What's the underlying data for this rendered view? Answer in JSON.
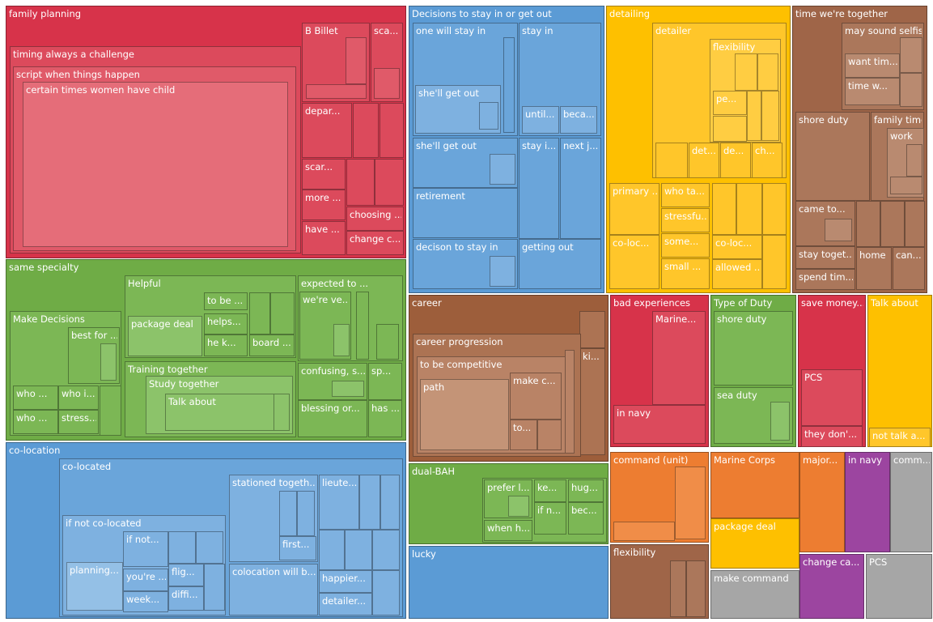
{
  "nodes": [
    {
      "label": "family planning",
      "children": [
        {
          "label": "timing always a challenge",
          "children": [
            {
              "label": "script when things happen",
              "children": [
                {
                  "label": "certain times women have child"
                }
              ]
            }
          ]
        },
        {
          "label": "B Billet"
        },
        {
          "label": "sca..."
        },
        {
          "label": "depar..."
        },
        {
          "label": "scar..."
        },
        {
          "label": "more ..."
        },
        {
          "label": "have ..."
        },
        {
          "label": "choosing ..."
        },
        {
          "label": "change c..."
        }
      ]
    },
    {
      "label": "Decisions to stay in or get out",
      "children": [
        {
          "label": "one will stay in",
          "children": [
            {
              "label": "she'll get out"
            }
          ]
        },
        {
          "label": "stay in",
          "children": [
            {
              "label": "until..."
            },
            {
              "label": "beca..."
            }
          ]
        },
        {
          "label": "she'll get out"
        },
        {
          "label": "stay i..."
        },
        {
          "label": "next j..."
        },
        {
          "label": "retirement"
        },
        {
          "label": "decison to stay in"
        },
        {
          "label": "getting out"
        }
      ]
    },
    {
      "label": "detailing",
      "children": [
        {
          "label": "detailer",
          "children": [
            {
              "label": "flexibility",
              "children": [
                {
                  "label": "pe..."
                }
              ]
            },
            {
              "label": "det..."
            },
            {
              "label": "de..."
            },
            {
              "label": "ch..."
            }
          ]
        },
        {
          "label": "primary ..."
        },
        {
          "label": "who ta..."
        },
        {
          "label": "stressfu..."
        },
        {
          "label": "some..."
        },
        {
          "label": "small ..."
        },
        {
          "label": "co-loc..."
        },
        {
          "label": "co-loc..."
        },
        {
          "label": "allowed ..."
        }
      ]
    },
    {
      "label": "time we're together",
      "children": [
        {
          "label": "may sound selfish",
          "children": [
            {
              "label": "want tim..."
            },
            {
              "label": "time w..."
            }
          ]
        },
        {
          "label": "shore duty"
        },
        {
          "label": "family time",
          "children": [
            {
              "label": "work"
            }
          ]
        },
        {
          "label": "came to..."
        },
        {
          "label": "stay toget..."
        },
        {
          "label": "spend tim..."
        },
        {
          "label": "home"
        },
        {
          "label": "can..."
        }
      ]
    },
    {
      "label": "same specialty",
      "children": [
        {
          "label": "Helpful",
          "children": [
            {
              "label": "package deal"
            },
            {
              "label": "to be ..."
            },
            {
              "label": "helps..."
            },
            {
              "label": "he k..."
            },
            {
              "label": "board ..."
            }
          ]
        },
        {
          "label": "Make Decisions",
          "children": [
            {
              "label": "best for ..."
            },
            {
              "label": "who ..."
            },
            {
              "label": "who i..."
            },
            {
              "label": "who ..."
            },
            {
              "label": "stress..."
            }
          ]
        },
        {
          "label": "expected to ...",
          "children": [
            {
              "label": "we're ve..."
            }
          ]
        },
        {
          "label": "confusing, s..."
        },
        {
          "label": "sp..."
        },
        {
          "label": "blessing or..."
        },
        {
          "label": "has ..."
        },
        {
          "label": "Training together",
          "children": [
            {
              "label": "Study together",
              "children": [
                {
                  "label": "Talk about"
                }
              ]
            }
          ]
        }
      ]
    },
    {
      "label": "co-location",
      "children": [
        {
          "label": "co-located",
          "children": [
            {
              "label": "stationed togeth...",
              "children": [
                {
                  "label": "first..."
                }
              ]
            },
            {
              "label": "colocation will b..."
            },
            {
              "label": "lieute..."
            },
            {
              "label": "happier..."
            },
            {
              "label": "detailer..."
            },
            {
              "label": "if not co-located",
              "children": [
                {
                  "label": "if not..."
                },
                {
                  "label": "planning..."
                },
                {
                  "label": "you're ..."
                },
                {
                  "label": "week..."
                },
                {
                  "label": "flig..."
                },
                {
                  "label": "diffi..."
                }
              ]
            }
          ]
        }
      ]
    },
    {
      "label": "career",
      "children": [
        {
          "label": "career progression",
          "children": [
            {
              "label": "to be competitive",
              "children": [
                {
                  "label": "path"
                },
                {
                  "label": "make c..."
                },
                {
                  "label": "to..."
                }
              ]
            }
          ]
        },
        {
          "label": "ki..."
        }
      ]
    },
    {
      "label": "dual-BAH",
      "children": [
        {
          "label": "prefer l..."
        },
        {
          "label": "ke..."
        },
        {
          "label": "hug..."
        },
        {
          "label": "if n..."
        },
        {
          "label": "bec..."
        },
        {
          "label": "when h..."
        }
      ]
    },
    {
      "label": "lucky"
    },
    {
      "label": "bad experiences",
      "children": [
        {
          "label": "Marine..."
        },
        {
          "label": "in navy"
        }
      ]
    },
    {
      "label": "Type of Duty",
      "children": [
        {
          "label": "shore duty"
        },
        {
          "label": "sea duty"
        }
      ]
    },
    {
      "label": "save money...",
      "children": [
        {
          "label": "PCS"
        },
        {
          "label": "they don'..."
        }
      ]
    },
    {
      "label": "Talk about",
      "children": [
        {
          "label": "not talk a..."
        }
      ]
    },
    {
      "label": "command (unit)"
    },
    {
      "label": "flexibility"
    },
    {
      "label": "Marine Corps"
    },
    {
      "label": "package deal"
    },
    {
      "label": "make command"
    },
    {
      "label": "major..."
    },
    {
      "label": "in navy"
    },
    {
      "label": "comm..."
    },
    {
      "label": "change ca..."
    },
    {
      "label": "PCS"
    }
  ]
}
